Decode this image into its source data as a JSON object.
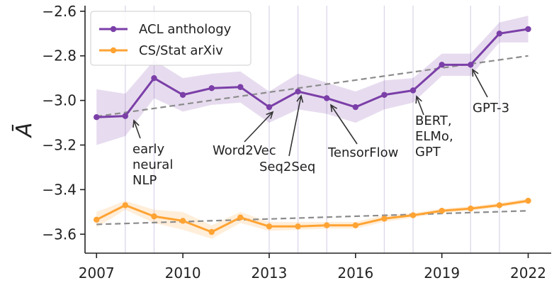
{
  "chart_data": {
    "type": "line",
    "title": "",
    "xlabel": "",
    "ylabel": "Ā",
    "xlim": [
      2006.6,
      2022.8
    ],
    "ylim": [
      -3.685,
      -2.575
    ],
    "xticks": [
      2007,
      2010,
      2013,
      2016,
      2019,
      2022
    ],
    "yticks": [
      -3.6,
      -3.4,
      -3.2,
      -3.0,
      -2.8,
      -2.6
    ],
    "ytick_labels": [
      "−3.6",
      "−3.4",
      "−3.2",
      "−3.0",
      "−2.8",
      "−2.6"
    ],
    "grid": "vertical lines at annotated years",
    "vlines": [
      2008,
      2009,
      2013,
      2014,
      2015,
      2017,
      2018,
      2020,
      2021
    ],
    "legend_position": "top-left",
    "x": [
      2007,
      2008,
      2009,
      2010,
      2011,
      2012,
      2013,
      2014,
      2015,
      2016,
      2017,
      2018,
      2019,
      2020,
      2021,
      2022
    ],
    "series": [
      {
        "name": "ACL anthology",
        "color": "#7b3fa8",
        "values": [
          -3.075,
          -3.07,
          -2.9,
          -2.975,
          -2.945,
          -2.94,
          -3.03,
          -2.96,
          -2.99,
          -3.03,
          -2.975,
          -2.955,
          -2.84,
          -2.84,
          -2.7,
          -2.68
        ],
        "lower": [
          -3.2,
          -3.16,
          -2.99,
          -3.05,
          -3.02,
          -3.01,
          -3.1,
          -3.04,
          -3.06,
          -3.1,
          -3.04,
          -3.01,
          -2.89,
          -2.89,
          -2.74,
          -2.74
        ],
        "upper": [
          -2.95,
          -2.97,
          -2.82,
          -2.9,
          -2.88,
          -2.87,
          -2.96,
          -2.88,
          -2.92,
          -2.96,
          -2.91,
          -2.9,
          -2.79,
          -2.79,
          -2.65,
          -2.62
        ],
        "trend": [
          -3.072,
          -2.8
        ]
      },
      {
        "name": "CS/Stat arXiv",
        "color": "#ffa333",
        "values": [
          -3.535,
          -3.47,
          -3.52,
          -3.54,
          -3.59,
          -3.525,
          -3.565,
          -3.565,
          -3.56,
          -3.56,
          -3.53,
          -3.515,
          -3.495,
          -3.485,
          -3.47,
          -3.45
        ],
        "lower": [
          -3.57,
          -3.49,
          -3.55,
          -3.58,
          -3.62,
          -3.55,
          -3.585,
          -3.58,
          -3.575,
          -3.575,
          -3.545,
          -3.525,
          -3.505,
          -3.495,
          -3.48,
          -3.46
        ],
        "upper": [
          -3.5,
          -3.45,
          -3.49,
          -3.5,
          -3.56,
          -3.5,
          -3.545,
          -3.545,
          -3.545,
          -3.545,
          -3.515,
          -3.505,
          -3.485,
          -3.475,
          -3.46,
          -3.44
        ],
        "trend": [
          -3.556,
          -3.495
        ]
      }
    ],
    "annotations": [
      {
        "lines": [
          "early",
          "neural",
          "NLP"
        ],
        "year": 2008,
        "target": -3.07
      },
      {
        "lines": [
          "Word2Vec"
        ],
        "year": 2013,
        "target": -3.03
      },
      {
        "lines": [
          "Seq2Seq"
        ],
        "year": 2014,
        "target": -2.96
      },
      {
        "lines": [
          "TensorFlow"
        ],
        "year": 2015,
        "target": -2.99
      },
      {
        "lines": [
          "BERT,",
          "ELMo,",
          "GPT"
        ],
        "year": 2018,
        "target": -2.955
      },
      {
        "lines": [
          "GPT-3"
        ],
        "year": 2020,
        "target": -2.84
      }
    ]
  }
}
